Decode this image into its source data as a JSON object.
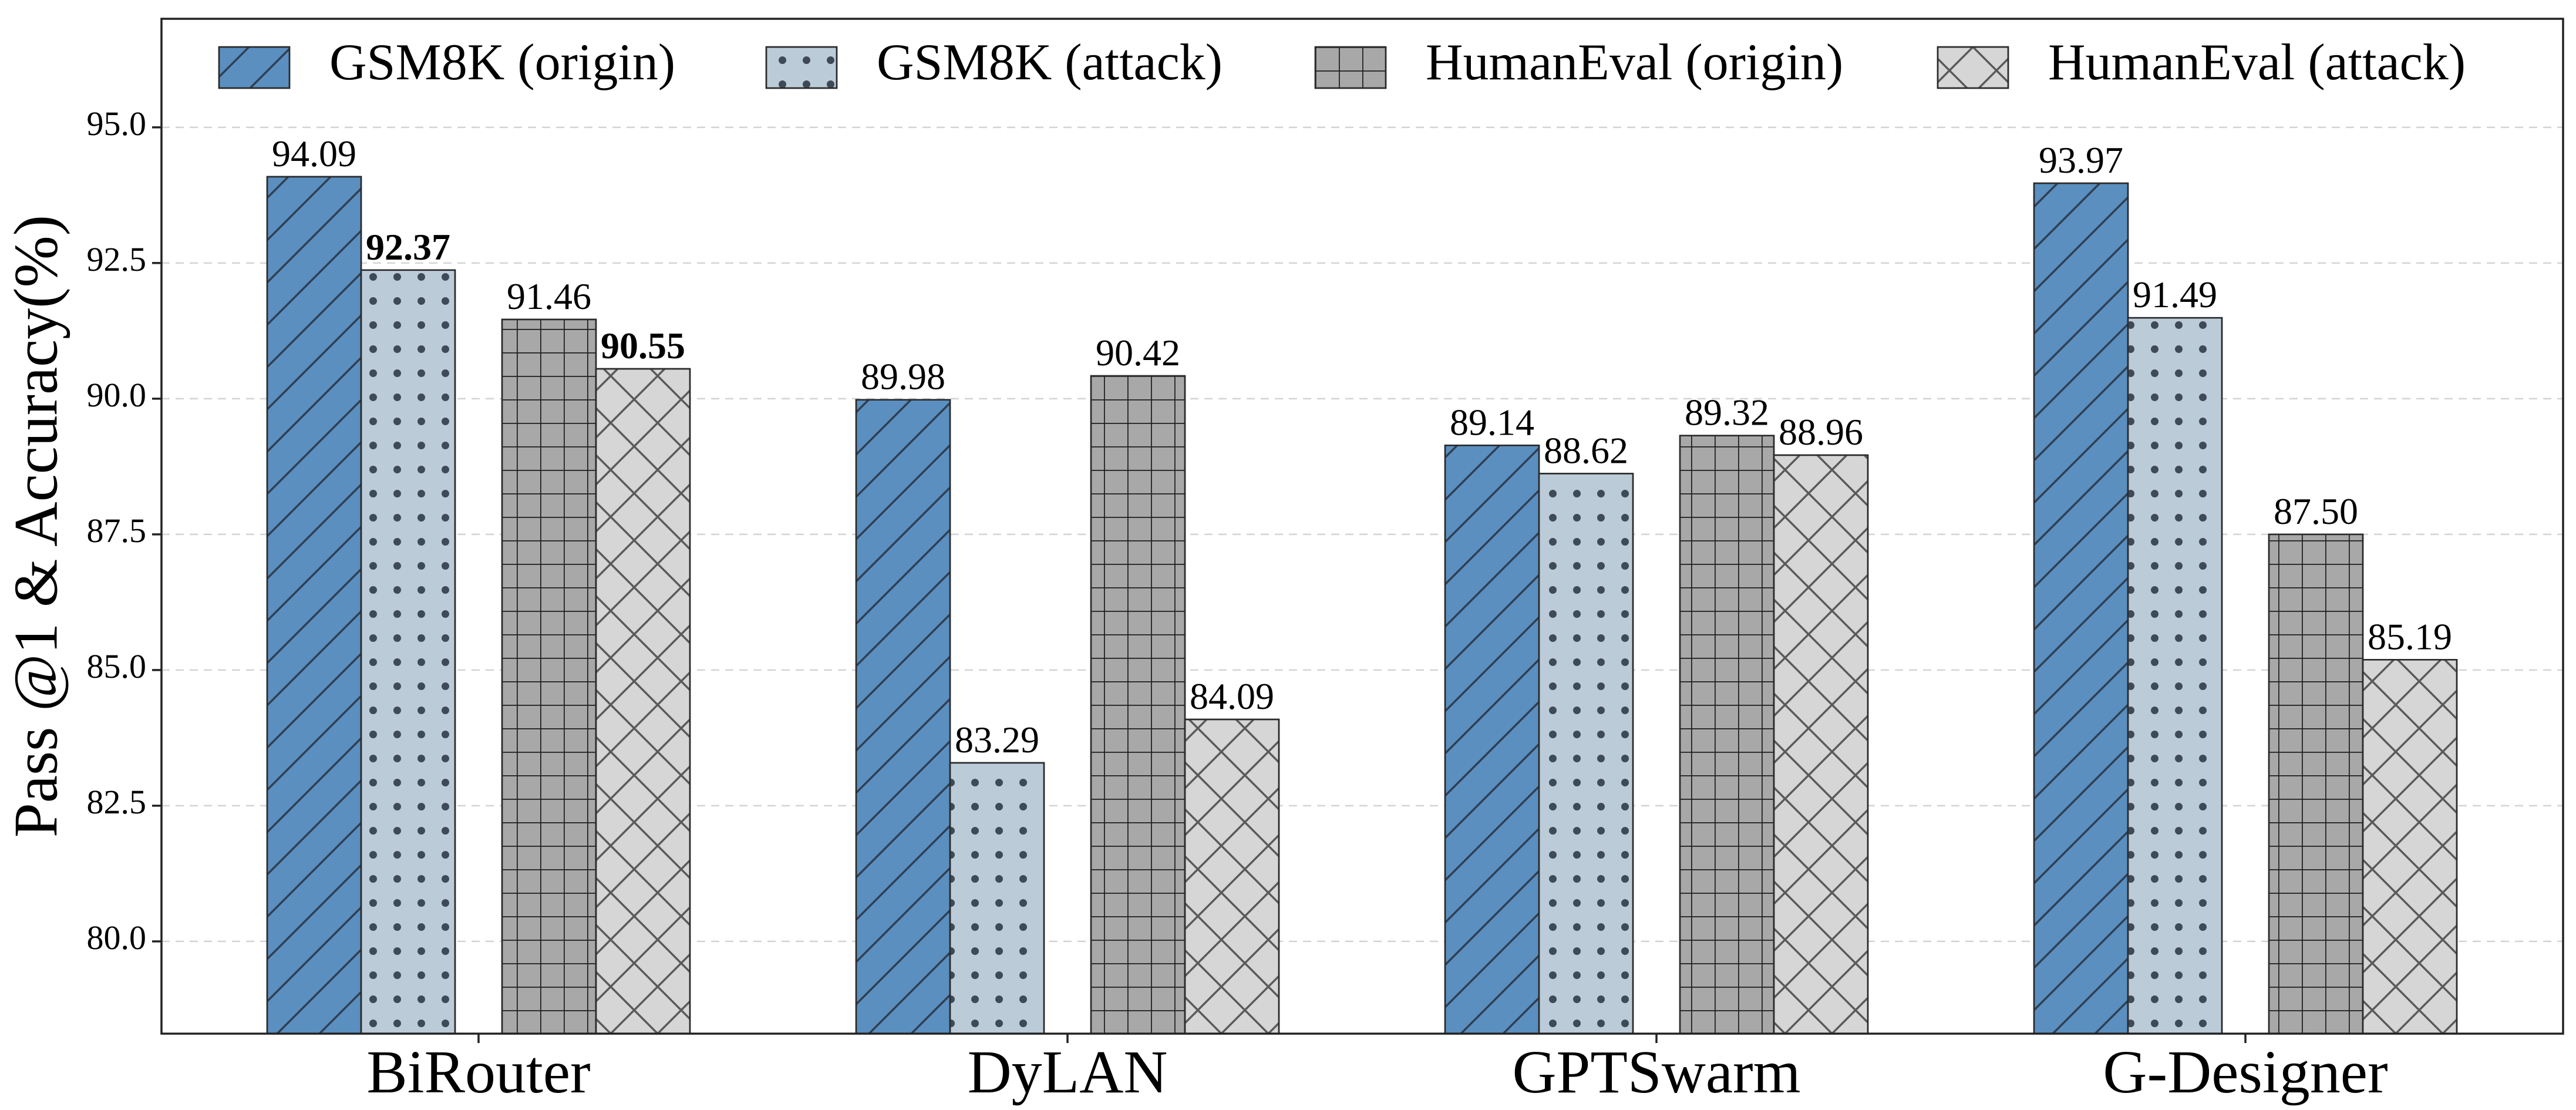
{
  "chart_data": {
    "type": "bar",
    "title": "",
    "xlabel": "",
    "ylabel": "Pass @1 & Accuracy(%)",
    "categories": [
      "BiRouter",
      "DyLAN",
      "GPTSwarm",
      "G-Designer"
    ],
    "ylim": [
      78.3,
      97.0
    ],
    "yticks": [
      80.0,
      82.5,
      85.0,
      87.5,
      90.0,
      92.5,
      95.0
    ],
    "ytick_labels": [
      "80.0",
      "82.5",
      "85.0",
      "87.5",
      "90.0",
      "92.5",
      "95.0"
    ],
    "grid": "y-dashed",
    "legend_position": "top",
    "series": [
      {
        "name": "GSM8K (origin)",
        "values": [
          94.09,
          89.98,
          89.14,
          93.97
        ],
        "labels": [
          "94.09",
          "89.98",
          "89.14",
          "93.97"
        ],
        "bold": [
          false,
          false,
          false,
          false
        ],
        "color": "#5a8fc0",
        "hatch": "diagonal"
      },
      {
        "name": "GSM8K (attack)",
        "values": [
          92.37,
          83.29,
          88.62,
          91.49
        ],
        "labels": [
          "92.37",
          "83.29",
          "88.62",
          "91.49"
        ],
        "bold": [
          true,
          false,
          false,
          false
        ],
        "color": "#bccbd8",
        "hatch": "dots"
      },
      {
        "name": "HumanEval (origin)",
        "values": [
          91.46,
          90.42,
          89.32,
          87.5
        ],
        "labels": [
          "91.46",
          "90.42",
          "89.32",
          "87.50"
        ],
        "bold": [
          false,
          false,
          false,
          false
        ],
        "color": "#a8a8a8",
        "hatch": "grid"
      },
      {
        "name": "HumanEval (attack)",
        "values": [
          90.55,
          84.09,
          88.96,
          85.19
        ],
        "labels": [
          "90.55",
          "84.09",
          "88.96",
          "85.19"
        ],
        "bold": [
          true,
          false,
          false,
          false
        ],
        "color": "#d6d6d6",
        "hatch": "cross"
      }
    ]
  }
}
